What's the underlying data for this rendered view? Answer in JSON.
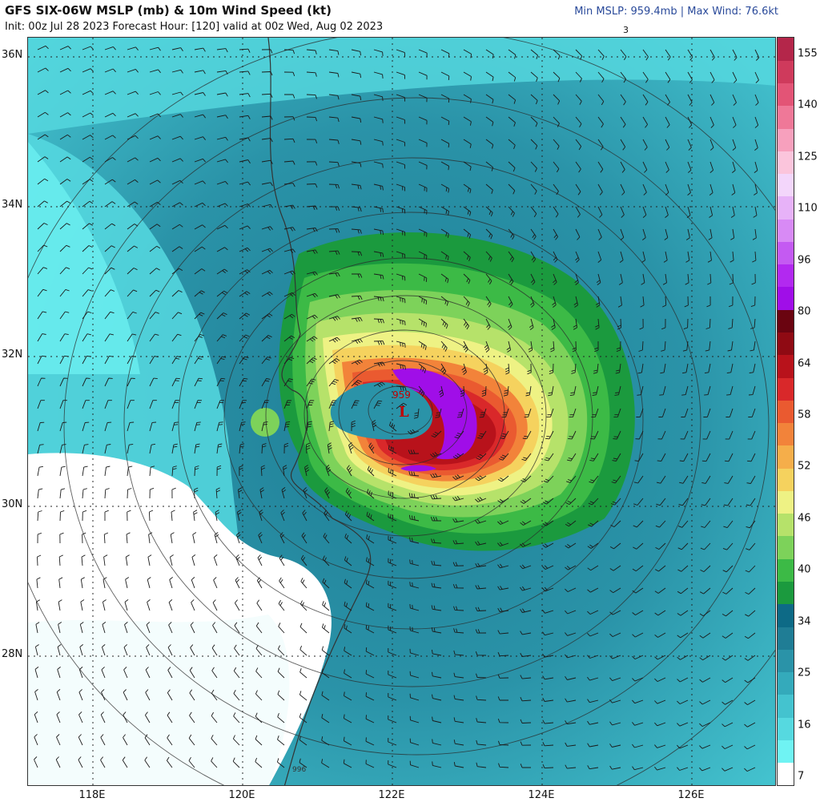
{
  "header": {
    "title": "GFS SIX-06W MSLP (mb) & 10m Wind Speed (kt)",
    "subtitle": "Init: 00z Jul 28 2023   Forecast Hour: [120]   valid at 00z Wed, Aug 02 2023",
    "stats": "Min MSLP: 959.4mb | Max Wind: 76.6kt",
    "top_mark": "3"
  },
  "map": {
    "lat_labels": [
      "36N",
      "34N",
      "32N",
      "30N",
      "28N"
    ],
    "lon_labels": [
      "118E",
      "120E",
      "122E",
      "124E",
      "126E"
    ],
    "low_center": {
      "pressure": "959",
      "symbol": "L"
    },
    "isobar_label": "996"
  },
  "colorbar": {
    "labels": [
      "155",
      "140",
      "125",
      "110",
      "96",
      "80",
      "64",
      "58",
      "52",
      "46",
      "40",
      "34",
      "25",
      "16",
      "7"
    ],
    "colors": [
      "#ffffff",
      "#6ff3f3",
      "#56d9e0",
      "#44c3cf",
      "#34aabb",
      "#2a93a8",
      "#1f7d95",
      "#0d6a86",
      "#1b9a3e",
      "#3cba46",
      "#7dd25a",
      "#b6e26a",
      "#eef284",
      "#f5d25e",
      "#f5ae4a",
      "#f2833a",
      "#ea5a30",
      "#d9282a",
      "#b8121b",
      "#8f0a13",
      "#6a0410",
      "#a00ee8",
      "#b229f0",
      "#c45af2",
      "#d88af5",
      "#e7b2f8",
      "#f3d6fb",
      "#fbc5dc",
      "#f7a0bd",
      "#ef7898",
      "#e35476",
      "#cf3a5c",
      "#b4264a"
    ]
  }
}
